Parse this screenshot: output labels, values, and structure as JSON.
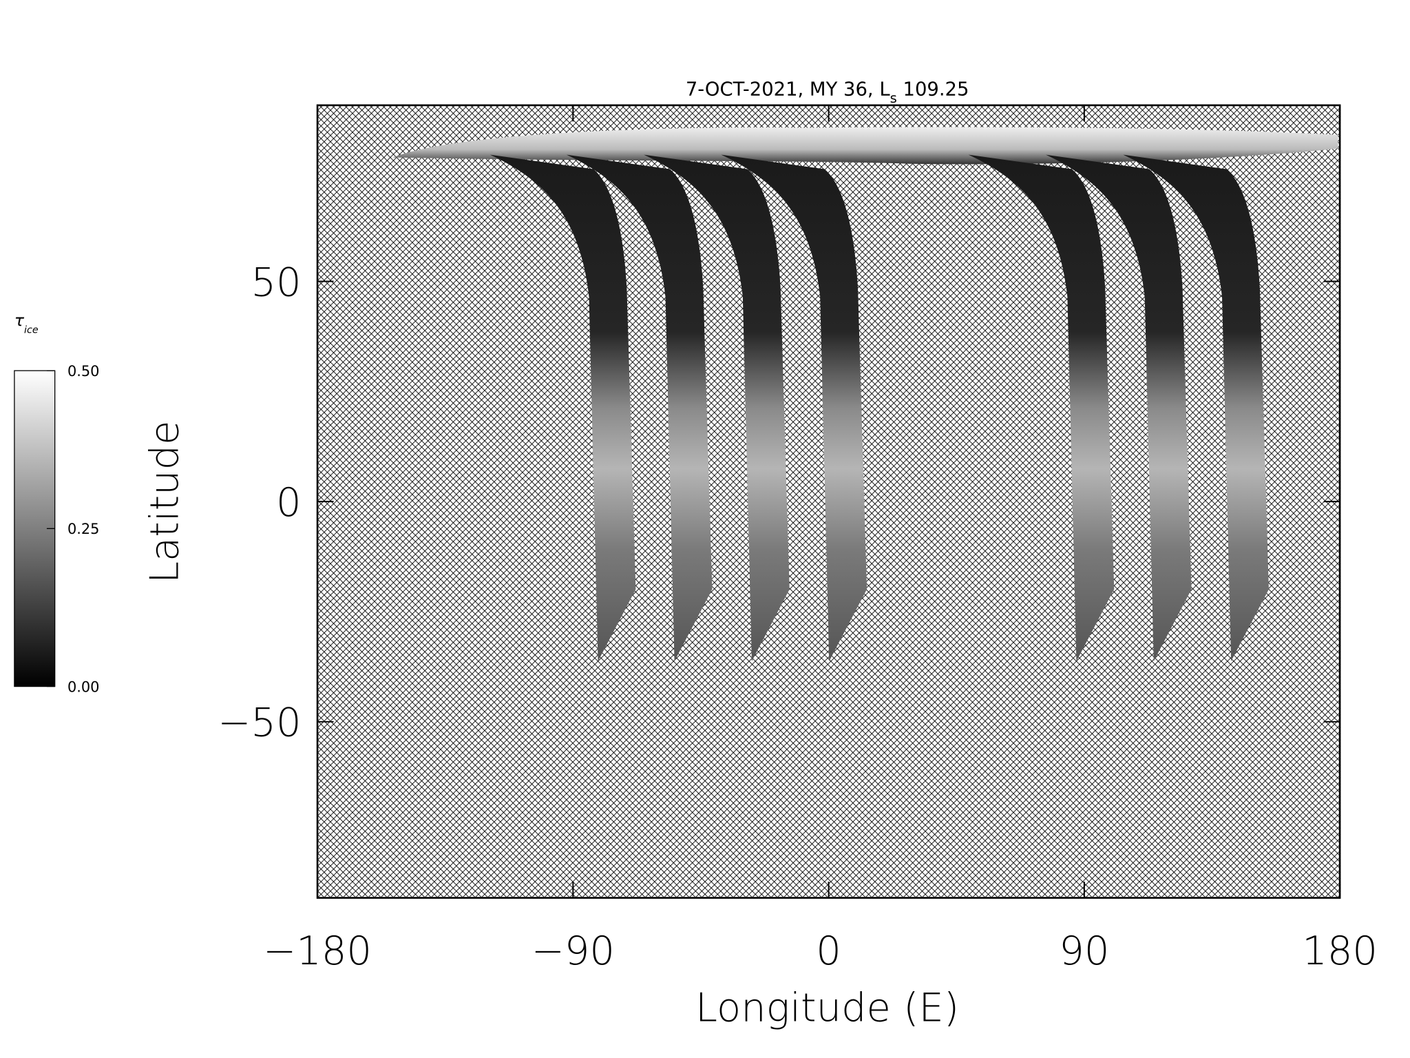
{
  "chart_data": {
    "type": "map",
    "title": {
      "text": "7-OCT-2021, MY 36,  L",
      "subscript": "s",
      "suffix": " 109.25"
    },
    "x_label": "Longitude (E)",
    "y_label": "Latitude",
    "xlim": [
      -180,
      180
    ],
    "ylim": [
      -90,
      90
    ],
    "xticks": [
      {
        "value": -180,
        "label": "−180"
      },
      {
        "value": -90,
        "label": "−90"
      },
      0,
      90,
      180
    ],
    "yticks": [
      {
        "value": -50,
        "label": "−50"
      },
      0,
      50
    ],
    "colorbar": {
      "label": {
        "symbol": "τ",
        "subscript": "ice"
      },
      "range": [
        0,
        0.5
      ],
      "ticks": [
        {
          "value": 0,
          "label": "0.00"
        },
        {
          "value": 0.25,
          "label": "0.25"
        },
        {
          "value": 0.5,
          "label": "0.50"
        }
      ]
    }
  }
}
